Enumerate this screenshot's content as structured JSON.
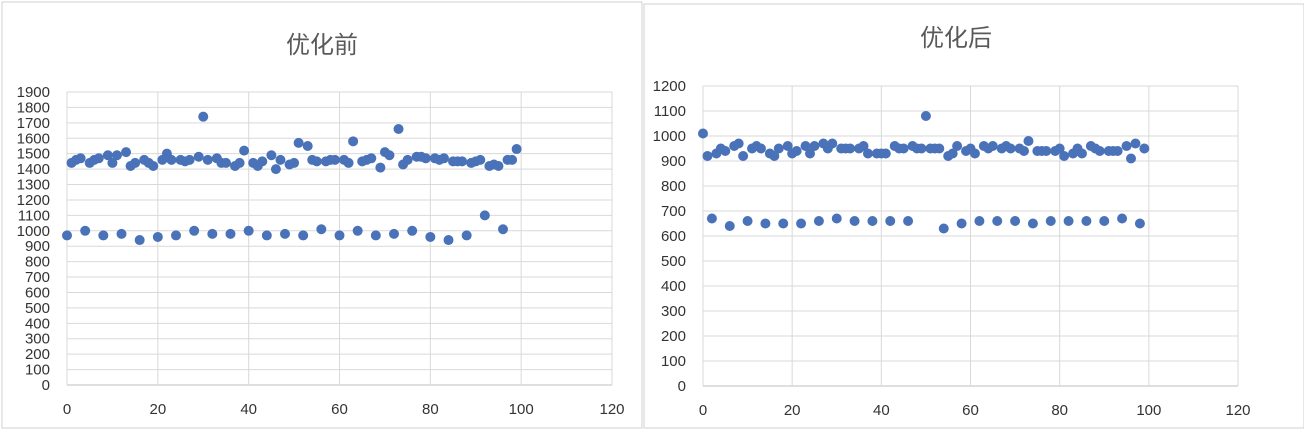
{
  "chart_data": [
    {
      "type": "scatter",
      "title": "优化前",
      "xlim": [
        0,
        120
      ],
      "ylim": [
        0,
        1900
      ],
      "xticks": [
        "0",
        "20",
        "40",
        "60",
        "80",
        "100",
        "120"
      ],
      "yticks": [
        "0",
        "100",
        "200",
        "300",
        "400",
        "500",
        "600",
        "700",
        "800",
        "900",
        "1000",
        "1100",
        "1200",
        "1300",
        "1400",
        "1500",
        "1600",
        "1700",
        "1800",
        "1900"
      ],
      "grid": true,
      "color": "#4a72b8",
      "points": [
        [
          0,
          970
        ],
        [
          1,
          1440
        ],
        [
          2,
          1460
        ],
        [
          3,
          1470
        ],
        [
          4,
          1000
        ],
        [
          5,
          1440
        ],
        [
          6,
          1460
        ],
        [
          7,
          1470
        ],
        [
          8,
          970
        ],
        [
          9,
          1490
        ],
        [
          10,
          1440
        ],
        [
          11,
          1490
        ],
        [
          12,
          980
        ],
        [
          13,
          1510
        ],
        [
          14,
          1420
        ],
        [
          15,
          1440
        ],
        [
          16,
          940
        ],
        [
          17,
          1460
        ],
        [
          18,
          1440
        ],
        [
          19,
          1420
        ],
        [
          20,
          960
        ],
        [
          21,
          1460
        ],
        [
          22,
          1500
        ],
        [
          23,
          1460
        ],
        [
          24,
          970
        ],
        [
          25,
          1460
        ],
        [
          26,
          1450
        ],
        [
          27,
          1460
        ],
        [
          28,
          1000
        ],
        [
          29,
          1480
        ],
        [
          30,
          1740
        ],
        [
          31,
          1460
        ],
        [
          32,
          980
        ],
        [
          33,
          1470
        ],
        [
          34,
          1440
        ],
        [
          35,
          1440
        ],
        [
          36,
          980
        ],
        [
          37,
          1420
        ],
        [
          38,
          1440
        ],
        [
          39,
          1520
        ],
        [
          40,
          1000
        ],
        [
          41,
          1440
        ],
        [
          42,
          1420
        ],
        [
          43,
          1450
        ],
        [
          44,
          970
        ],
        [
          45,
          1490
        ],
        [
          46,
          1400
        ],
        [
          47,
          1460
        ],
        [
          48,
          980
        ],
        [
          49,
          1430
        ],
        [
          50,
          1440
        ],
        [
          51,
          1570
        ],
        [
          52,
          970
        ],
        [
          53,
          1550
        ],
        [
          54,
          1460
        ],
        [
          55,
          1450
        ],
        [
          56,
          1010
        ],
        [
          57,
          1450
        ],
        [
          58,
          1460
        ],
        [
          59,
          1460
        ],
        [
          60,
          970
        ],
        [
          61,
          1460
        ],
        [
          62,
          1440
        ],
        [
          63,
          1580
        ],
        [
          64,
          1000
        ],
        [
          65,
          1450
        ],
        [
          66,
          1460
        ],
        [
          67,
          1470
        ],
        [
          68,
          970
        ],
        [
          69,
          1410
        ],
        [
          70,
          1510
        ],
        [
          71,
          1490
        ],
        [
          72,
          980
        ],
        [
          73,
          1660
        ],
        [
          74,
          1430
        ],
        [
          75,
          1460
        ],
        [
          76,
          1000
        ],
        [
          77,
          1480
        ],
        [
          78,
          1480
        ],
        [
          79,
          1470
        ],
        [
          80,
          960
        ],
        [
          81,
          1470
        ],
        [
          82,
          1460
        ],
        [
          83,
          1470
        ],
        [
          84,
          940
        ],
        [
          85,
          1450
        ],
        [
          86,
          1450
        ],
        [
          87,
          1450
        ],
        [
          88,
          970
        ],
        [
          89,
          1440
        ],
        [
          90,
          1450
        ],
        [
          91,
          1460
        ],
        [
          92,
          1100
        ],
        [
          93,
          1420
        ],
        [
          94,
          1430
        ],
        [
          95,
          1420
        ],
        [
          96,
          1010
        ],
        [
          97,
          1460
        ],
        [
          98,
          1460
        ],
        [
          99,
          1530
        ]
      ]
    },
    {
      "type": "scatter",
      "title": "优化后",
      "xlim": [
        0,
        120
      ],
      "ylim": [
        0,
        1200
      ],
      "xticks": [
        "0",
        "20",
        "40",
        "60",
        "80",
        "100",
        "120"
      ],
      "yticks": [
        "0",
        "100",
        "200",
        "300",
        "400",
        "500",
        "600",
        "700",
        "800",
        "900",
        "1000",
        "1100",
        "1200"
      ],
      "grid": true,
      "color": "#4a72b8",
      "points": [
        [
          0,
          1010
        ],
        [
          1,
          920
        ],
        [
          2,
          670
        ],
        [
          3,
          930
        ],
        [
          4,
          950
        ],
        [
          5,
          940
        ],
        [
          6,
          640
        ],
        [
          7,
          960
        ],
        [
          8,
          970
        ],
        [
          9,
          920
        ],
        [
          10,
          660
        ],
        [
          11,
          950
        ],
        [
          12,
          960
        ],
        [
          13,
          950
        ],
        [
          14,
          650
        ],
        [
          15,
          930
        ],
        [
          16,
          920
        ],
        [
          17,
          950
        ],
        [
          18,
          650
        ],
        [
          19,
          960
        ],
        [
          20,
          930
        ],
        [
          21,
          940
        ],
        [
          22,
          650
        ],
        [
          23,
          960
        ],
        [
          24,
          930
        ],
        [
          25,
          960
        ],
        [
          26,
          660
        ],
        [
          27,
          970
        ],
        [
          28,
          950
        ],
        [
          29,
          970
        ],
        [
          30,
          670
        ],
        [
          31,
          950
        ],
        [
          32,
          950
        ],
        [
          33,
          950
        ],
        [
          34,
          660
        ],
        [
          35,
          950
        ],
        [
          36,
          960
        ],
        [
          37,
          930
        ],
        [
          38,
          660
        ],
        [
          39,
          930
        ],
        [
          40,
          930
        ],
        [
          41,
          930
        ],
        [
          42,
          660
        ],
        [
          43,
          960
        ],
        [
          44,
          950
        ],
        [
          45,
          950
        ],
        [
          46,
          660
        ],
        [
          47,
          960
        ],
        [
          48,
          950
        ],
        [
          49,
          950
        ],
        [
          50,
          1080
        ],
        [
          51,
          950
        ],
        [
          52,
          950
        ],
        [
          53,
          950
        ],
        [
          54,
          630
        ],
        [
          55,
          920
        ],
        [
          56,
          930
        ],
        [
          57,
          960
        ],
        [
          58,
          650
        ],
        [
          59,
          940
        ],
        [
          60,
          950
        ],
        [
          61,
          930
        ],
        [
          62,
          660
        ],
        [
          63,
          960
        ],
        [
          64,
          950
        ],
        [
          65,
          960
        ],
        [
          66,
          660
        ],
        [
          67,
          950
        ],
        [
          68,
          960
        ],
        [
          69,
          950
        ],
        [
          70,
          660
        ],
        [
          71,
          950
        ],
        [
          72,
          940
        ],
        [
          73,
          980
        ],
        [
          74,
          650
        ],
        [
          75,
          940
        ],
        [
          76,
          940
        ],
        [
          77,
          940
        ],
        [
          78,
          660
        ],
        [
          79,
          940
        ],
        [
          80,
          950
        ],
        [
          81,
          920
        ],
        [
          82,
          660
        ],
        [
          83,
          930
        ],
        [
          84,
          950
        ],
        [
          85,
          930
        ],
        [
          86,
          660
        ],
        [
          87,
          960
        ],
        [
          88,
          950
        ],
        [
          89,
          940
        ],
        [
          90,
          660
        ],
        [
          91,
          940
        ],
        [
          92,
          940
        ],
        [
          93,
          940
        ],
        [
          94,
          670
        ],
        [
          95,
          960
        ],
        [
          96,
          910
        ],
        [
          97,
          970
        ],
        [
          98,
          650
        ],
        [
          99,
          950
        ]
      ]
    }
  ]
}
